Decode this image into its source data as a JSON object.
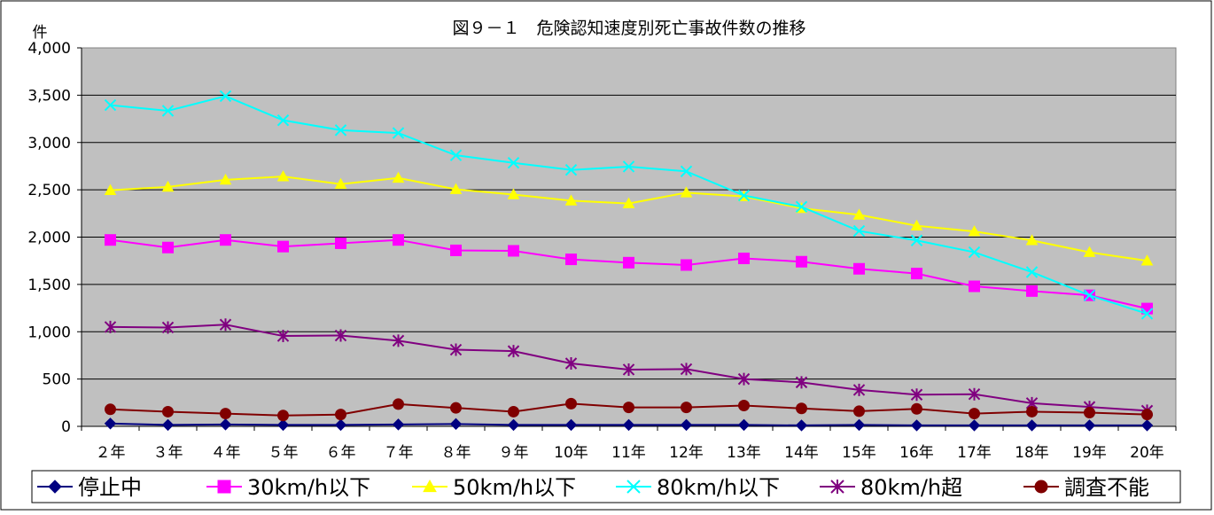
{
  "chart_data": {
    "type": "line",
    "title": "図９－１　危険認知速度別死亡事故件数の推移",
    "ylabel": "件",
    "xlabel": "",
    "categories": [
      "２年",
      "３年",
      "４年",
      "５年",
      "６年",
      "７年",
      "８年",
      "９年",
      "10年",
      "11年",
      "12年",
      "13年",
      "14年",
      "15年",
      "16年",
      "17年",
      "18年",
      "19年",
      "20年"
    ],
    "ylim": [
      0,
      4000
    ],
    "yticks": [
      0,
      500,
      1000,
      1500,
      2000,
      2500,
      3000,
      3500,
      4000
    ],
    "ytick_labels": [
      "0",
      "500",
      "1,000",
      "1,500",
      "2,000",
      "2,500",
      "3,000",
      "3,500",
      "4,000"
    ],
    "grid": true,
    "plot_background": "#c0c0c0",
    "legend_position": "bottom",
    "series": [
      {
        "name": "停止中",
        "color": "#000080",
        "marker": "diamond",
        "values": [
          30,
          15,
          20,
          15,
          15,
          20,
          25,
          15,
          15,
          15,
          15,
          15,
          10,
          15,
          10,
          10,
          10,
          10,
          10
        ]
      },
      {
        "name": "30km/h以下",
        "color": "#ff00ff",
        "marker": "square",
        "values": [
          1970,
          1890,
          1970,
          1900,
          1935,
          1970,
          1860,
          1855,
          1765,
          1730,
          1705,
          1775,
          1740,
          1665,
          1615,
          1480,
          1430,
          1385,
          1245
        ]
      },
      {
        "name": "50km/h以下",
        "color": "#ffff00",
        "marker": "triangle",
        "values": [
          2495,
          2530,
          2605,
          2640,
          2560,
          2625,
          2505,
          2450,
          2385,
          2355,
          2470,
          2430,
          2305,
          2235,
          2120,
          2060,
          1965,
          1840,
          1750
        ]
      },
      {
        "name": "80km/h以下",
        "color": "#00ffff",
        "marker": "x",
        "values": [
          3395,
          3335,
          3490,
          3235,
          3130,
          3100,
          2865,
          2785,
          2710,
          2745,
          2695,
          2440,
          2320,
          2065,
          1965,
          1840,
          1630,
          1385,
          1190
        ]
      },
      {
        "name": "80km/h超",
        "color": "#800080",
        "marker": "star",
        "values": [
          1050,
          1045,
          1075,
          955,
          960,
          905,
          810,
          795,
          665,
          600,
          605,
          500,
          465,
          385,
          335,
          340,
          245,
          205,
          165
        ]
      },
      {
        "name": "調査不能",
        "color": "#800000",
        "marker": "circle",
        "values": [
          180,
          155,
          135,
          115,
          125,
          235,
          195,
          155,
          240,
          200,
          200,
          220,
          190,
          160,
          185,
          135,
          155,
          145,
          125
        ]
      }
    ]
  }
}
